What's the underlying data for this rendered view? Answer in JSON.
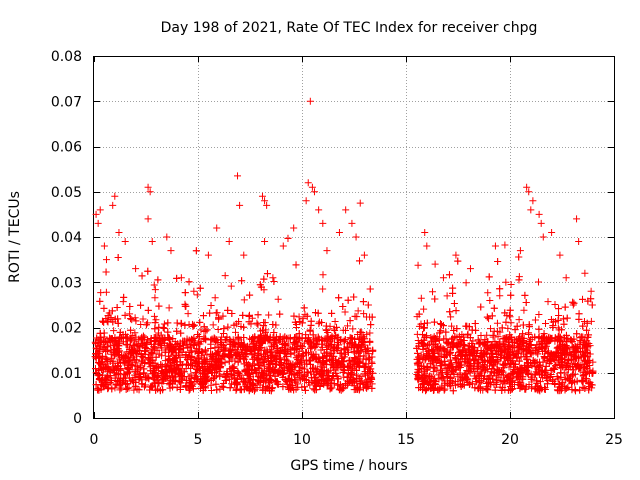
{
  "chart_data": {
    "type": "scatter",
    "title": "Day 198 of 2021, Rate Of TEC Index for receiver chpg",
    "xlabel": "GPS time / hours",
    "ylabel": "ROTI / TECUs",
    "xlim": [
      0,
      25
    ],
    "ylim": [
      0,
      0.08
    ],
    "xticks": [
      0,
      5,
      10,
      15,
      20,
      25
    ],
    "xtick_labels": [
      "0",
      "5",
      "10",
      "15",
      "20",
      "25"
    ],
    "yticks": [
      0,
      0.01,
      0.02,
      0.03,
      0.04,
      0.05,
      0.06,
      0.07,
      0.08
    ],
    "ytick_labels": [
      "0",
      "0.01",
      "0.02",
      "0.03",
      "0.04",
      "0.05",
      "0.06",
      "0.07",
      "0.08"
    ],
    "grid": true,
    "marker": "+",
    "marker_color": "#ff0000",
    "data_gap_hours": [
      13.4,
      15.5
    ],
    "series": [
      {
        "name": "ROTI",
        "points": [
          [
            0.1,
            0.045
          ],
          [
            0.2,
            0.043
          ],
          [
            0.3,
            0.046
          ],
          [
            0.5,
            0.038
          ],
          [
            0.6,
            0.035
          ],
          [
            0.9,
            0.047
          ],
          [
            1.0,
            0.049
          ],
          [
            1.2,
            0.041
          ],
          [
            1.5,
            0.039
          ],
          [
            2.0,
            0.033
          ],
          [
            2.6,
            0.051
          ],
          [
            2.7,
            0.05
          ],
          [
            2.6,
            0.044
          ],
          [
            2.8,
            0.039
          ],
          [
            3.5,
            0.04
          ],
          [
            3.7,
            0.037
          ],
          [
            4.2,
            0.031
          ],
          [
            4.8,
            0.028
          ],
          [
            5.5,
            0.036
          ],
          [
            5.9,
            0.042
          ],
          [
            6.5,
            0.039
          ],
          [
            6.9,
            0.0535
          ],
          [
            7.0,
            0.047
          ],
          [
            7.2,
            0.036
          ],
          [
            8.1,
            0.049
          ],
          [
            8.2,
            0.048
          ],
          [
            8.3,
            0.047
          ],
          [
            8.2,
            0.039
          ],
          [
            8.6,
            0.031
          ],
          [
            9.1,
            0.038
          ],
          [
            9.6,
            0.042
          ],
          [
            10.2,
            0.048
          ],
          [
            10.3,
            0.052
          ],
          [
            10.4,
            0.07
          ],
          [
            10.5,
            0.051
          ],
          [
            10.6,
            0.05
          ],
          [
            10.8,
            0.046
          ],
          [
            11.0,
            0.043
          ],
          [
            11.2,
            0.037
          ],
          [
            11.8,
            0.041
          ],
          [
            12.1,
            0.046
          ],
          [
            12.4,
            0.043
          ],
          [
            12.6,
            0.04
          ],
          [
            12.8,
            0.0475
          ],
          [
            13.0,
            0.036
          ],
          [
            15.9,
            0.041
          ],
          [
            16.0,
            0.038
          ],
          [
            16.4,
            0.034
          ],
          [
            16.8,
            0.031
          ],
          [
            17.4,
            0.036
          ],
          [
            18.1,
            0.033
          ],
          [
            19.3,
            0.038
          ],
          [
            19.8,
            0.03
          ],
          [
            20.5,
            0.037
          ],
          [
            20.8,
            0.051
          ],
          [
            20.9,
            0.05
          ],
          [
            21.0,
            0.046
          ],
          [
            21.1,
            0.048
          ],
          [
            21.4,
            0.045
          ],
          [
            21.5,
            0.043
          ],
          [
            21.6,
            0.04
          ],
          [
            22.0,
            0.041
          ],
          [
            22.4,
            0.036
          ],
          [
            22.7,
            0.031
          ],
          [
            23.2,
            0.044
          ],
          [
            23.3,
            0.039
          ],
          [
            23.6,
            0.032
          ],
          [
            23.9,
            0.028
          ]
        ]
      }
    ]
  }
}
